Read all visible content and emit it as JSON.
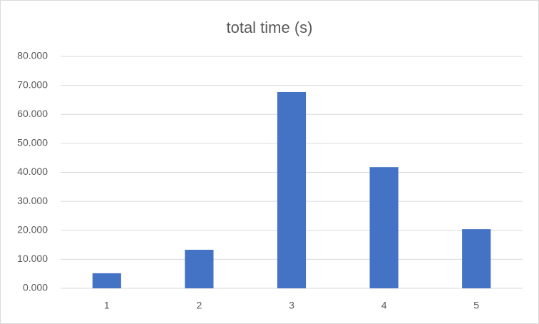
{
  "chart_data": {
    "type": "bar",
    "title": "total time (s)",
    "categories": [
      "1",
      "2",
      "3",
      "4",
      "5"
    ],
    "values": [
      5.2,
      13.3,
      67.7,
      41.8,
      20.4
    ],
    "color": "#4472c4",
    "ylim": [
      0,
      80
    ],
    "yticks": [
      {
        "value": 0,
        "label": "0.000"
      },
      {
        "value": 10,
        "label": "10.000"
      },
      {
        "value": 20,
        "label": "20.000"
      },
      {
        "value": 30,
        "label": "30.000"
      },
      {
        "value": 40,
        "label": "40.000"
      },
      {
        "value": 50,
        "label": "50.000"
      },
      {
        "value": 60,
        "label": "60.000"
      },
      {
        "value": 70,
        "label": "70.000"
      },
      {
        "value": 80,
        "label": "80.000"
      }
    ],
    "grid": true
  }
}
